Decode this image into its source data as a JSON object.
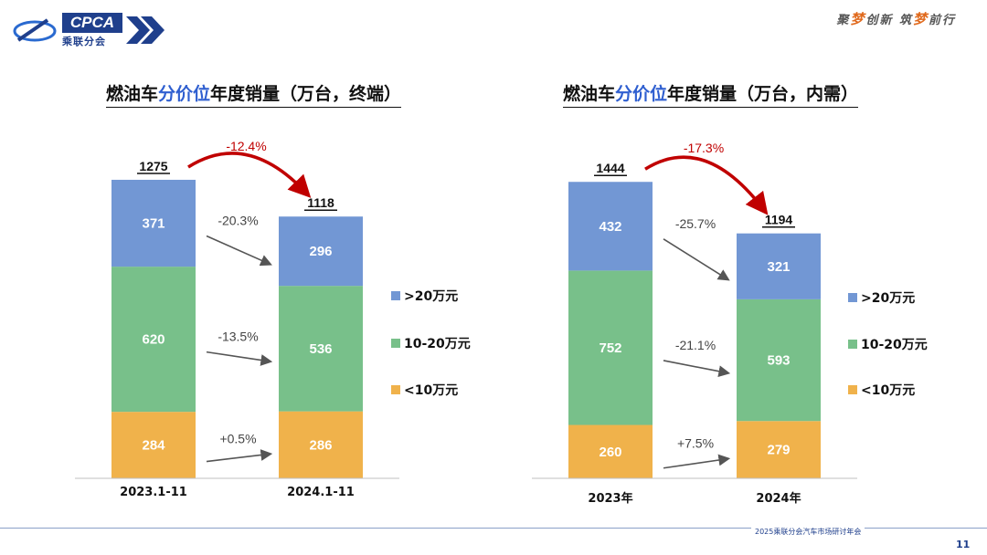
{
  "header": {
    "logo_text": "CPCA",
    "logo_cn": "乘联分会",
    "slogan_parts": [
      "聚",
      "梦",
      "创新 筑",
      "梦",
      "前行"
    ]
  },
  "footer": {
    "text": "2025乘联分会汽车市场研讨年会",
    "page": "11"
  },
  "colors": {
    "blue": "#7297d4",
    "green": "#78c08a",
    "orange": "#f0b24b",
    "arrow_red": "#c00000",
    "arrow_gray": "#555555"
  },
  "chart_data": [
    {
      "type": "bar",
      "stacked": true,
      "title_parts": [
        "燃油车",
        "分价位",
        "年度销量（万台，终端）"
      ],
      "categories": [
        "2023.1-11",
        "2024.1-11"
      ],
      "series": [
        {
          "name": "<10万元",
          "values": [
            284,
            286
          ]
        },
        {
          "name": "10-20万元",
          "values": [
            620,
            536
          ]
        },
        {
          "name": ">20万元",
          "values": [
            371,
            296
          ]
        }
      ],
      "totals": [
        1275,
        1118
      ],
      "segment_changes": [
        "+0.5%",
        "-13.5%",
        "-20.3%"
      ],
      "total_change": "-12.4%",
      "legend": [
        ">20万元",
        "10-20万元",
        "<10万元"
      ]
    },
    {
      "type": "bar",
      "stacked": true,
      "title_parts": [
        "燃油车",
        "分价位",
        "年度销量（万台，内需）"
      ],
      "categories": [
        "2023年",
        "2024年"
      ],
      "series": [
        {
          "name": "<10万元",
          "values": [
            260,
            279
          ]
        },
        {
          "name": "10-20万元",
          "values": [
            752,
            593
          ]
        },
        {
          "name": ">20万元",
          "values": [
            432,
            321
          ]
        }
      ],
      "totals": [
        1444,
        1194
      ],
      "segment_changes": [
        "+7.5%",
        "-21.1%",
        "-25.7%"
      ],
      "total_change": "-17.3%",
      "legend": [
        ">20万元",
        "10-20万元",
        "<10万元"
      ]
    }
  ]
}
